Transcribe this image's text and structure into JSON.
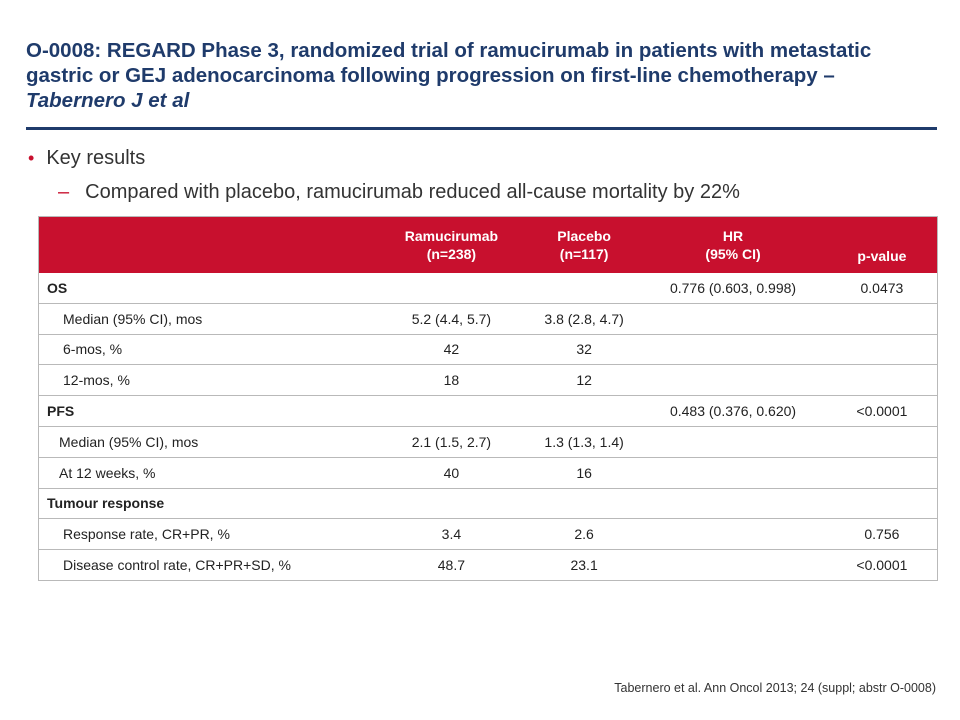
{
  "slide": {
    "title_main": "O-0008: REGARD Phase 3, randomized trial of ramucirumab in patients with metastatic gastric or GEJ adenocarcinoma following progression on first-line chemotherapy – ",
    "title_authors": "Tabernero J et al",
    "bullet": "Key results",
    "sub_bullet": "Compared with placebo, ramucirumab reduced all-cause mortality by 22%",
    "footer": "Tabernero et al. Ann Oncol 2013; 24 (suppl; abstr O-0008)",
    "accent_color": "#c8102e",
    "title_color": "#1f3b6b"
  },
  "table": {
    "headers": [
      {
        "line1": "",
        "line2": ""
      },
      {
        "line1": "Ramucirumab",
        "line2": "(n=238)"
      },
      {
        "line1": "Placebo",
        "line2": "(n=117)"
      },
      {
        "line1": "HR",
        "line2": "(95% CI)"
      },
      {
        "line1": "",
        "line2": "p-value"
      }
    ],
    "rows": [
      {
        "label": "OS",
        "ram": "",
        "pla": "",
        "hr": "0.776 (0.603, 0.998)",
        "p": "0.0473"
      },
      {
        "label": "Median (95% CI), mos",
        "ram": "5.2 (4.4, 5.7)",
        "pla": "3.8 (2.8, 4.7)",
        "hr": "",
        "p": ""
      },
      {
        "label": "6-mos, %",
        "ram": "42",
        "pla": "32",
        "hr": "",
        "p": ""
      },
      {
        "label": "12-mos, %",
        "ram": "18",
        "pla": "12",
        "hr": "",
        "p": ""
      },
      {
        "label": "PFS",
        "ram": "",
        "pla": "",
        "hr": "0.483 (0.376, 0.620)",
        "p": "<0.0001"
      },
      {
        "label": "Median (95% CI), mos",
        "ram": "2.1 (1.5, 2.7)",
        "pla": "1.3 (1.3, 1.4)",
        "hr": "",
        "p": ""
      },
      {
        "label": "At 12 weeks, %",
        "ram": "40",
        "pla": "16",
        "hr": "",
        "p": ""
      },
      {
        "label": "Tumour response",
        "ram": "",
        "pla": "",
        "hr": "",
        "p": ""
      },
      {
        "label": "Response rate, CR+PR, %",
        "ram": "3.4",
        "pla": "2.6",
        "hr": "",
        "p": "0.756"
      },
      {
        "label": "Disease control rate, CR+PR+SD, %",
        "ram": "48.7",
        "pla": "23.1",
        "hr": "",
        "p": "<0.0001"
      }
    ]
  }
}
